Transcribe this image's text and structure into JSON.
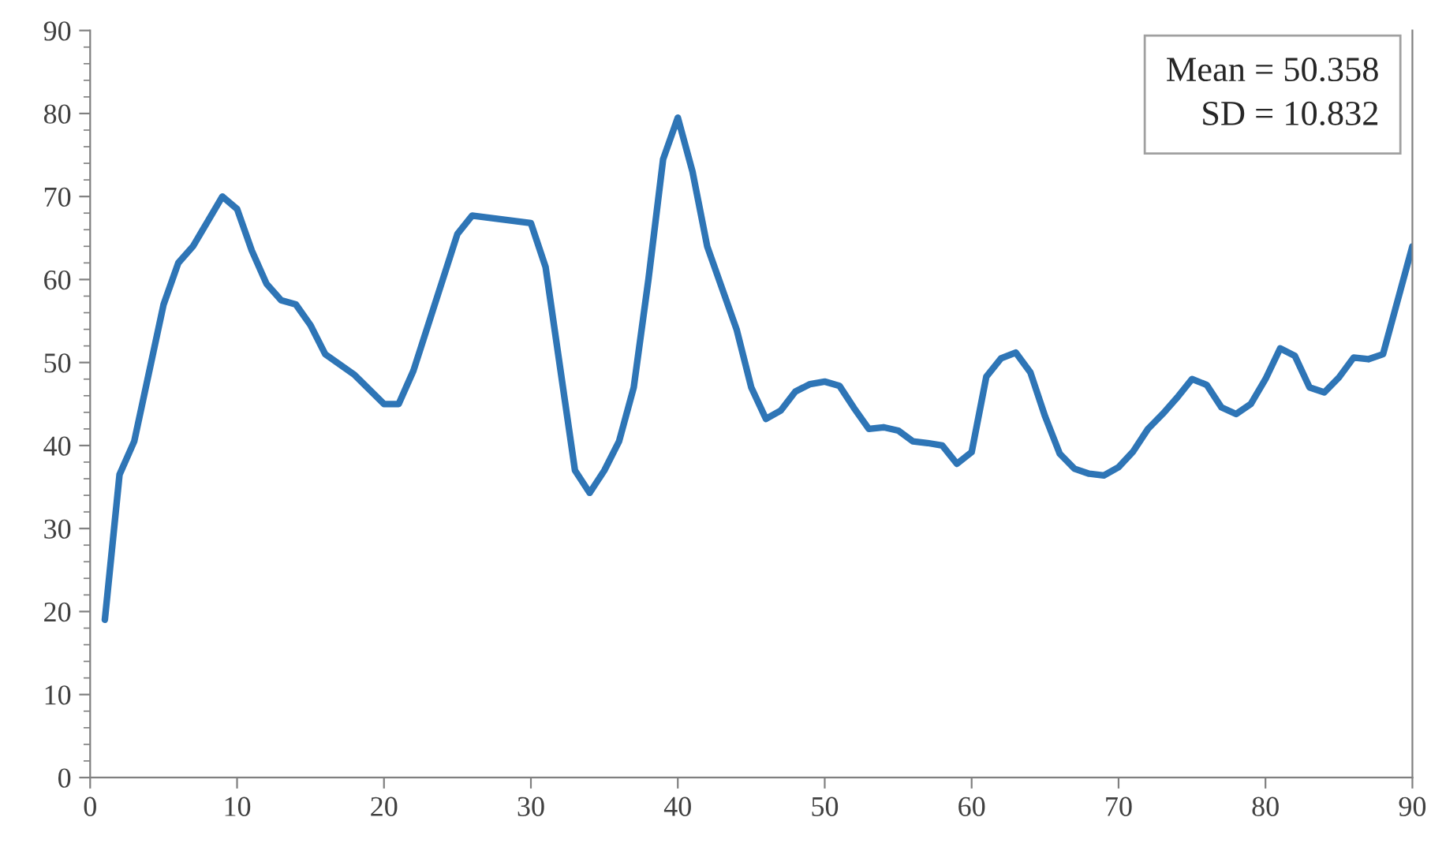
{
  "chart_data": {
    "type": "line",
    "xlim": [
      0,
      90
    ],
    "ylim": [
      0,
      90
    ],
    "xticks": [
      0,
      10,
      20,
      30,
      40,
      50,
      60,
      70,
      80,
      90
    ],
    "yticks": [
      0,
      10,
      20,
      30,
      40,
      50,
      60,
      70,
      80,
      90
    ],
    "grid": false,
    "legend": false,
    "marker": "none",
    "line_style": "solid",
    "annotations": [
      "Mean = 50.358\nSD = 10.832"
    ],
    "series": [
      {
        "color": "#2e75b6",
        "x": [
          1,
          2,
          3,
          5,
          6,
          7,
          9,
          10,
          11,
          12,
          13,
          14,
          15,
          16,
          18,
          20,
          21,
          22,
          24,
          25,
          26,
          30,
          31,
          33,
          34,
          35,
          36,
          37,
          38,
          39,
          40,
          41,
          42,
          44,
          45,
          46,
          47,
          48,
          49,
          50,
          51,
          52,
          53,
          54,
          55,
          56,
          57,
          58,
          59,
          60,
          61,
          62,
          63,
          64,
          65,
          66,
          67,
          68,
          69,
          70,
          71,
          72,
          73,
          74,
          75,
          76,
          77,
          78,
          79,
          80,
          81,
          82,
          83,
          84,
          85,
          86,
          87,
          88,
          89,
          90
        ],
        "values": [
          19,
          36.5,
          40.5,
          57,
          62,
          64,
          70,
          68.5,
          63.5,
          59.5,
          57.5,
          57,
          54.5,
          51,
          48.5,
          45,
          45,
          49,
          60,
          65.5,
          67.7,
          66.8,
          61.5,
          37,
          34.3,
          37,
          40.5,
          47,
          60,
          74.5,
          79.5,
          73,
          64,
          54,
          47,
          43.2,
          44.2,
          46.5,
          47.4,
          47.7,
          47.2,
          44.5,
          42,
          42.2,
          41.8,
          40.5,
          40.3,
          40,
          37.8,
          39.2,
          48.3,
          50.5,
          51.2,
          48.8,
          43.5,
          39,
          37.2,
          36.6,
          36.4,
          37.4,
          39.3,
          42,
          43.8,
          45.8,
          48,
          47.3,
          44.6,
          43.8,
          45,
          48,
          51.7,
          50.8,
          47,
          46.4,
          48.2,
          50.6,
          50.4,
          51,
          57.5,
          64
        ]
      }
    ]
  }
}
